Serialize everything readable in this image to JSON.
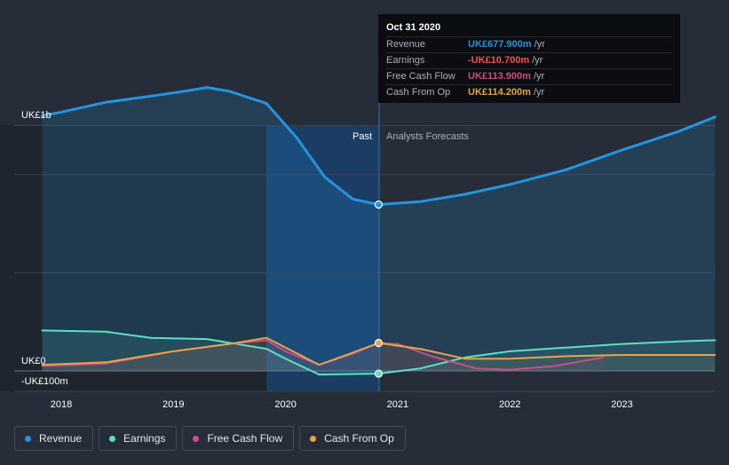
{
  "tooltip": {
    "date": "Oct 31 2020",
    "rows": [
      {
        "label": "Revenue",
        "value": "UK£677.900m",
        "unit": "/yr",
        "color": "#2394df"
      },
      {
        "label": "Earnings",
        "value": "-UK£10.700m",
        "unit": "/yr",
        "color": "#ff4d4d"
      },
      {
        "label": "Free Cash Flow",
        "value": "UK£113.900m",
        "unit": "/yr",
        "color": "#c94f86"
      },
      {
        "label": "Cash From Op",
        "value": "UK£114.200m",
        "unit": "/yr",
        "color": "#e7a449"
      }
    ]
  },
  "regions": {
    "past": "Past",
    "forecast": "Analysts Forecasts"
  },
  "legend": [
    {
      "label": "Revenue",
      "color": "#2394df"
    },
    {
      "label": "Earnings",
      "color": "#5be0c8"
    },
    {
      "label": "Free Cash Flow",
      "color": "#c94f86"
    },
    {
      "label": "Cash From Op",
      "color": "#e7a449"
    }
  ],
  "colors": {
    "background": "#262d38",
    "past_highlight": "#1a3f6b",
    "grid": "#3b4350",
    "revenue": "#2394df",
    "earnings": "#5be0c8",
    "free_cash_flow": "#c94f86",
    "cash_from_op": "#e7a449"
  },
  "chart_data": {
    "type": "line",
    "y_tick_labels": [
      "UK£1b",
      "UK£0",
      "-UK£100m"
    ],
    "x_tick_labels": [
      "2018",
      "2019",
      "2020",
      "2021",
      "2022",
      "2023"
    ],
    "ylim": [
      -100,
      1200
    ],
    "xlim": [
      2017.6,
      2023.83
    ],
    "ylim_labels_note": "",
    "past_end": 2020.83,
    "series": [
      {
        "name": "Revenue",
        "key": "revenue",
        "points": [
          [
            2017.83,
            1040
          ],
          [
            2018.0,
            1055
          ],
          [
            2018.4,
            1095
          ],
          [
            2018.8,
            1120
          ],
          [
            2019.1,
            1140
          ],
          [
            2019.3,
            1155
          ],
          [
            2019.5,
            1140
          ],
          [
            2019.83,
            1090
          ],
          [
            2020.1,
            950
          ],
          [
            2020.35,
            790
          ],
          [
            2020.6,
            700
          ],
          [
            2020.83,
            678
          ],
          [
            2021.2,
            690
          ],
          [
            2021.6,
            720
          ],
          [
            2022.0,
            760
          ],
          [
            2022.5,
            820
          ],
          [
            2023.0,
            900
          ],
          [
            2023.5,
            975
          ],
          [
            2023.83,
            1035
          ]
        ]
      },
      {
        "name": "Earnings",
        "key": "earnings",
        "points": [
          [
            2017.83,
            165
          ],
          [
            2018.4,
            160
          ],
          [
            2018.8,
            135
          ],
          [
            2019.3,
            130
          ],
          [
            2019.83,
            90
          ],
          [
            2020.0,
            50
          ],
          [
            2020.3,
            -15
          ],
          [
            2020.83,
            -11
          ],
          [
            2021.2,
            10
          ],
          [
            2021.6,
            55
          ],
          [
            2022.0,
            80
          ],
          [
            2022.5,
            95
          ],
          [
            2023.0,
            110
          ],
          [
            2023.5,
            120
          ],
          [
            2023.83,
            125
          ]
        ]
      },
      {
        "name": "Free Cash Flow",
        "key": "free_cash_flow",
        "points": [
          [
            2017.83,
            20
          ],
          [
            2018.4,
            30
          ],
          [
            2019.0,
            80
          ],
          [
            2019.5,
            110
          ],
          [
            2019.83,
            125
          ],
          [
            2020.0,
            80
          ],
          [
            2020.3,
            25
          ],
          [
            2020.6,
            70
          ],
          [
            2020.83,
            114
          ],
          [
            2021.0,
            110
          ],
          [
            2021.3,
            60
          ],
          [
            2021.7,
            10
          ],
          [
            2022.0,
            5
          ],
          [
            2022.4,
            20
          ],
          [
            2022.83,
            55
          ]
        ]
      },
      {
        "name": "Cash From Op",
        "key": "cash_from_op",
        "points": [
          [
            2017.83,
            25
          ],
          [
            2018.4,
            35
          ],
          [
            2019.0,
            80
          ],
          [
            2019.5,
            110
          ],
          [
            2019.83,
            135
          ],
          [
            2020.0,
            95
          ],
          [
            2020.3,
            25
          ],
          [
            2020.6,
            75
          ],
          [
            2020.83,
            114
          ],
          [
            2021.2,
            90
          ],
          [
            2021.6,
            50
          ],
          [
            2022.0,
            50
          ],
          [
            2022.5,
            60
          ],
          [
            2023.0,
            65
          ],
          [
            2023.83,
            65
          ]
        ]
      }
    ]
  }
}
